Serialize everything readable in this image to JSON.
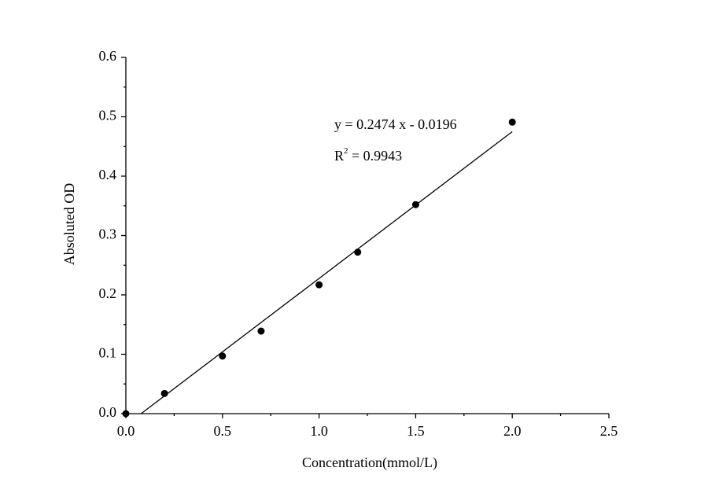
{
  "chart_data": {
    "type": "scatter",
    "x_label": "Concentration(mmol/L)",
    "y_label": "Absoluted OD",
    "x": [
      0,
      0.2,
      0.5,
      0.7,
      1.0,
      1.2,
      1.5,
      2.0
    ],
    "values": [
      0,
      0.034,
      0.097,
      0.139,
      0.217,
      0.272,
      0.352,
      0.491
    ],
    "color": "#000000",
    "fit": {
      "x": [
        0.079,
        2.0
      ],
      "y": [
        0,
        0.475
      ]
    },
    "annotations": [
      {
        "text": "y = 0.2474 x - 0.0196"
      },
      {
        "text": "R",
        "superscript": "2",
        "text_after": " = 0.9943"
      }
    ],
    "xlim": [
      0,
      2.5
    ],
    "ylim": [
      0,
      0.6
    ],
    "xticks": [
      {
        "value": 0,
        "label": "0.0"
      },
      0.5,
      {
        "value": 1,
        "label": "1.0"
      },
      1.5,
      {
        "value": 2,
        "label": "2.0"
      },
      2.5
    ],
    "yticks": [
      {
        "value": 0,
        "label": "0.0"
      },
      0.1,
      0.2,
      0.3,
      0.4,
      0.5,
      0.6
    ],
    "x_minor_ticks": [
      0.25,
      0.75,
      1.25,
      1.75,
      2.25
    ],
    "y_minor_ticks": [
      0.05,
      0.15,
      0.25,
      0.35,
      0.45,
      0.55
    ]
  }
}
